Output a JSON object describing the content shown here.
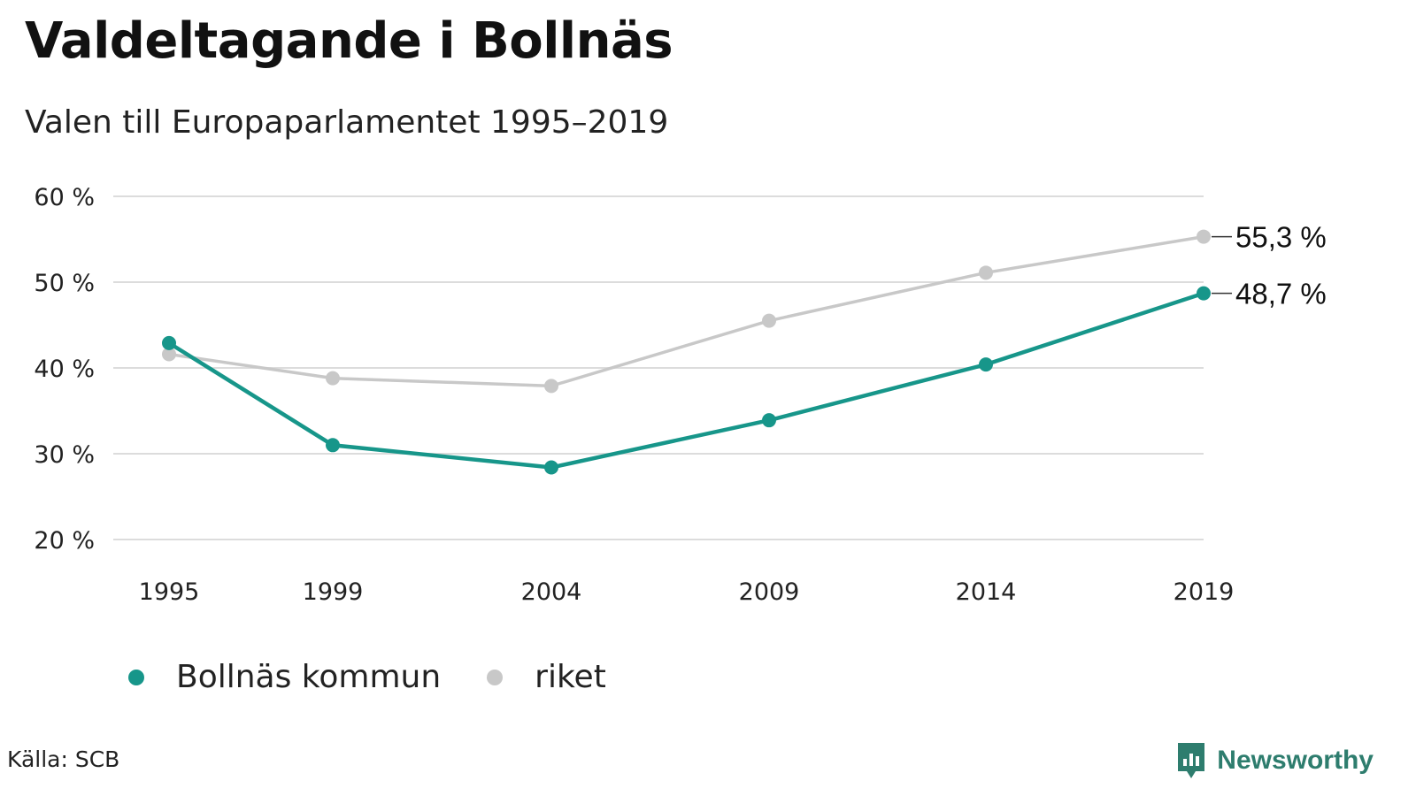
{
  "header": {
    "title": "Valdeltagande i Bollnäs",
    "subtitle": "Valen till Europaparlamentet 1995–2019"
  },
  "chart_data": {
    "type": "line",
    "x": [
      "1995",
      "1999",
      "2004",
      "2009",
      "2014",
      "2019"
    ],
    "series": [
      {
        "name": "Bollnäs kommun",
        "color": "#17968a",
        "values": [
          42.9,
          31.0,
          28.4,
          33.9,
          40.4,
          48.7
        ]
      },
      {
        "name": "riket",
        "color": "#c8c8c8",
        "values": [
          41.6,
          38.8,
          37.9,
          45.5,
          51.1,
          55.3
        ]
      }
    ],
    "yticks": [
      "20 %",
      "30 %",
      "40 %",
      "50 %",
      "60 %"
    ],
    "ylim": [
      20,
      60
    ],
    "grid": true,
    "end_labels": [
      "55,3 %",
      "48,7 %"
    ],
    "legend_position": "bottom-left"
  },
  "footer": {
    "source": "Källa: SCB",
    "brand": "Newsworthy",
    "brand_color": "#2e7d6e"
  }
}
